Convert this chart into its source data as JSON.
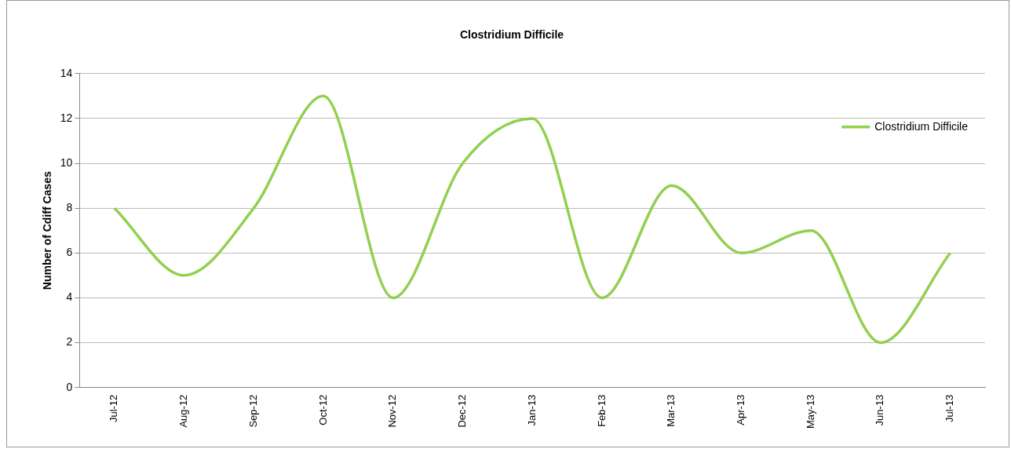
{
  "chart_data": {
    "type": "line",
    "title": "Clostridium Difficile",
    "ylabel": "Number of Cdiff Cases",
    "categories": [
      "Jul-12",
      "Aug-12",
      "Sep-12",
      "Oct-12",
      "Nov-12",
      "Dec-12",
      "Jan-13",
      "Feb-13",
      "Mar-13",
      "Apr-13",
      "May-13",
      "Jun-13",
      "Jul-13"
    ],
    "series": [
      {
        "name": "Clostridium Difficile",
        "color": "#92d050",
        "values": [
          8,
          5,
          8,
          13,
          4,
          10,
          12,
          4,
          9,
          6,
          7,
          2,
          6
        ]
      }
    ],
    "ylim": [
      0,
      14
    ],
    "yticks": [
      0,
      2,
      4,
      6,
      8,
      10,
      12,
      14
    ],
    "grid": "y",
    "legend": "top right",
    "marker": "none",
    "line_style": "solid"
  }
}
